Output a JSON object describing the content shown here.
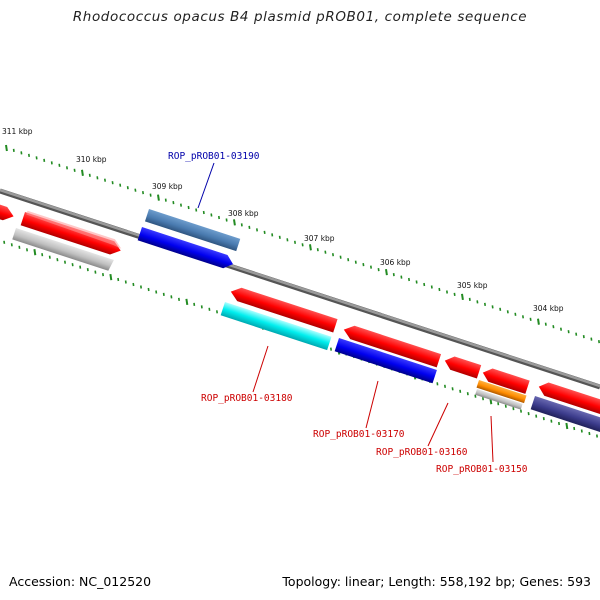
{
  "title": "Rhodococcus opacus B4 plasmid pROB01, complete sequence",
  "footer": {
    "accession": "Accession: NC_012520",
    "summary": "Topology: linear; Length: 558,192 bp; Genes: 593"
  },
  "colors": {
    "backbone": "#808080",
    "tick": "#228b22",
    "label_forward": "#cc0000",
    "label_reverse": "#0000aa",
    "red": "#ff0000",
    "blue": "#0000ee",
    "steelblue": "#4a7bb0",
    "cyan": "#00e5ee",
    "gray": "#c0c0c0",
    "orange": "#ff8c00",
    "slateblue": "#3c3c8c"
  },
  "scale_labels": [
    "311 kbp",
    "310 kbp",
    "309 kbp",
    "308 kbp",
    "307 kbp",
    "306 kbp",
    "305 kbp",
    "304 kbp"
  ],
  "gene_labels": [
    {
      "id": "ROP_pROB01-03190",
      "color": "blue"
    },
    {
      "id": "ROP_pROB01-03180",
      "color": "red"
    },
    {
      "id": "ROP_pROB01-03170",
      "color": "red"
    },
    {
      "id": "ROP_pROB01-03160",
      "color": "red"
    },
    {
      "id": "ROP_pROB01-03150",
      "color": "red"
    }
  ],
  "features": [
    {
      "name": "gene-far-left",
      "color": "red",
      "strand": "forward"
    },
    {
      "name": "gene-left",
      "color": "red",
      "strand": "forward"
    },
    {
      "name": "cds-left",
      "color": "gray",
      "strand": "forward"
    },
    {
      "name": "gene-03190",
      "color": "steelblue",
      "strand": "reverse"
    },
    {
      "name": "cds-03190",
      "color": "blue",
      "strand": "reverse"
    },
    {
      "name": "gene-03180",
      "color": "red",
      "strand": "forward"
    },
    {
      "name": "cds-03180",
      "color": "cyan",
      "strand": "forward"
    },
    {
      "name": "gene-03170",
      "color": "red",
      "strand": "forward"
    },
    {
      "name": "cds-03170",
      "color": "blue",
      "strand": "forward"
    },
    {
      "name": "gene-03160",
      "color": "red",
      "strand": "forward"
    },
    {
      "name": "gene-03150",
      "color": "red",
      "strand": "forward"
    },
    {
      "name": "cds-03150",
      "color": "orange",
      "strand": "forward"
    },
    {
      "name": "cds-03150-b",
      "color": "gray",
      "strand": "forward"
    },
    {
      "name": "gene-right",
      "color": "red",
      "strand": "forward"
    },
    {
      "name": "cds-right",
      "color": "slateblue",
      "strand": "forward"
    }
  ]
}
